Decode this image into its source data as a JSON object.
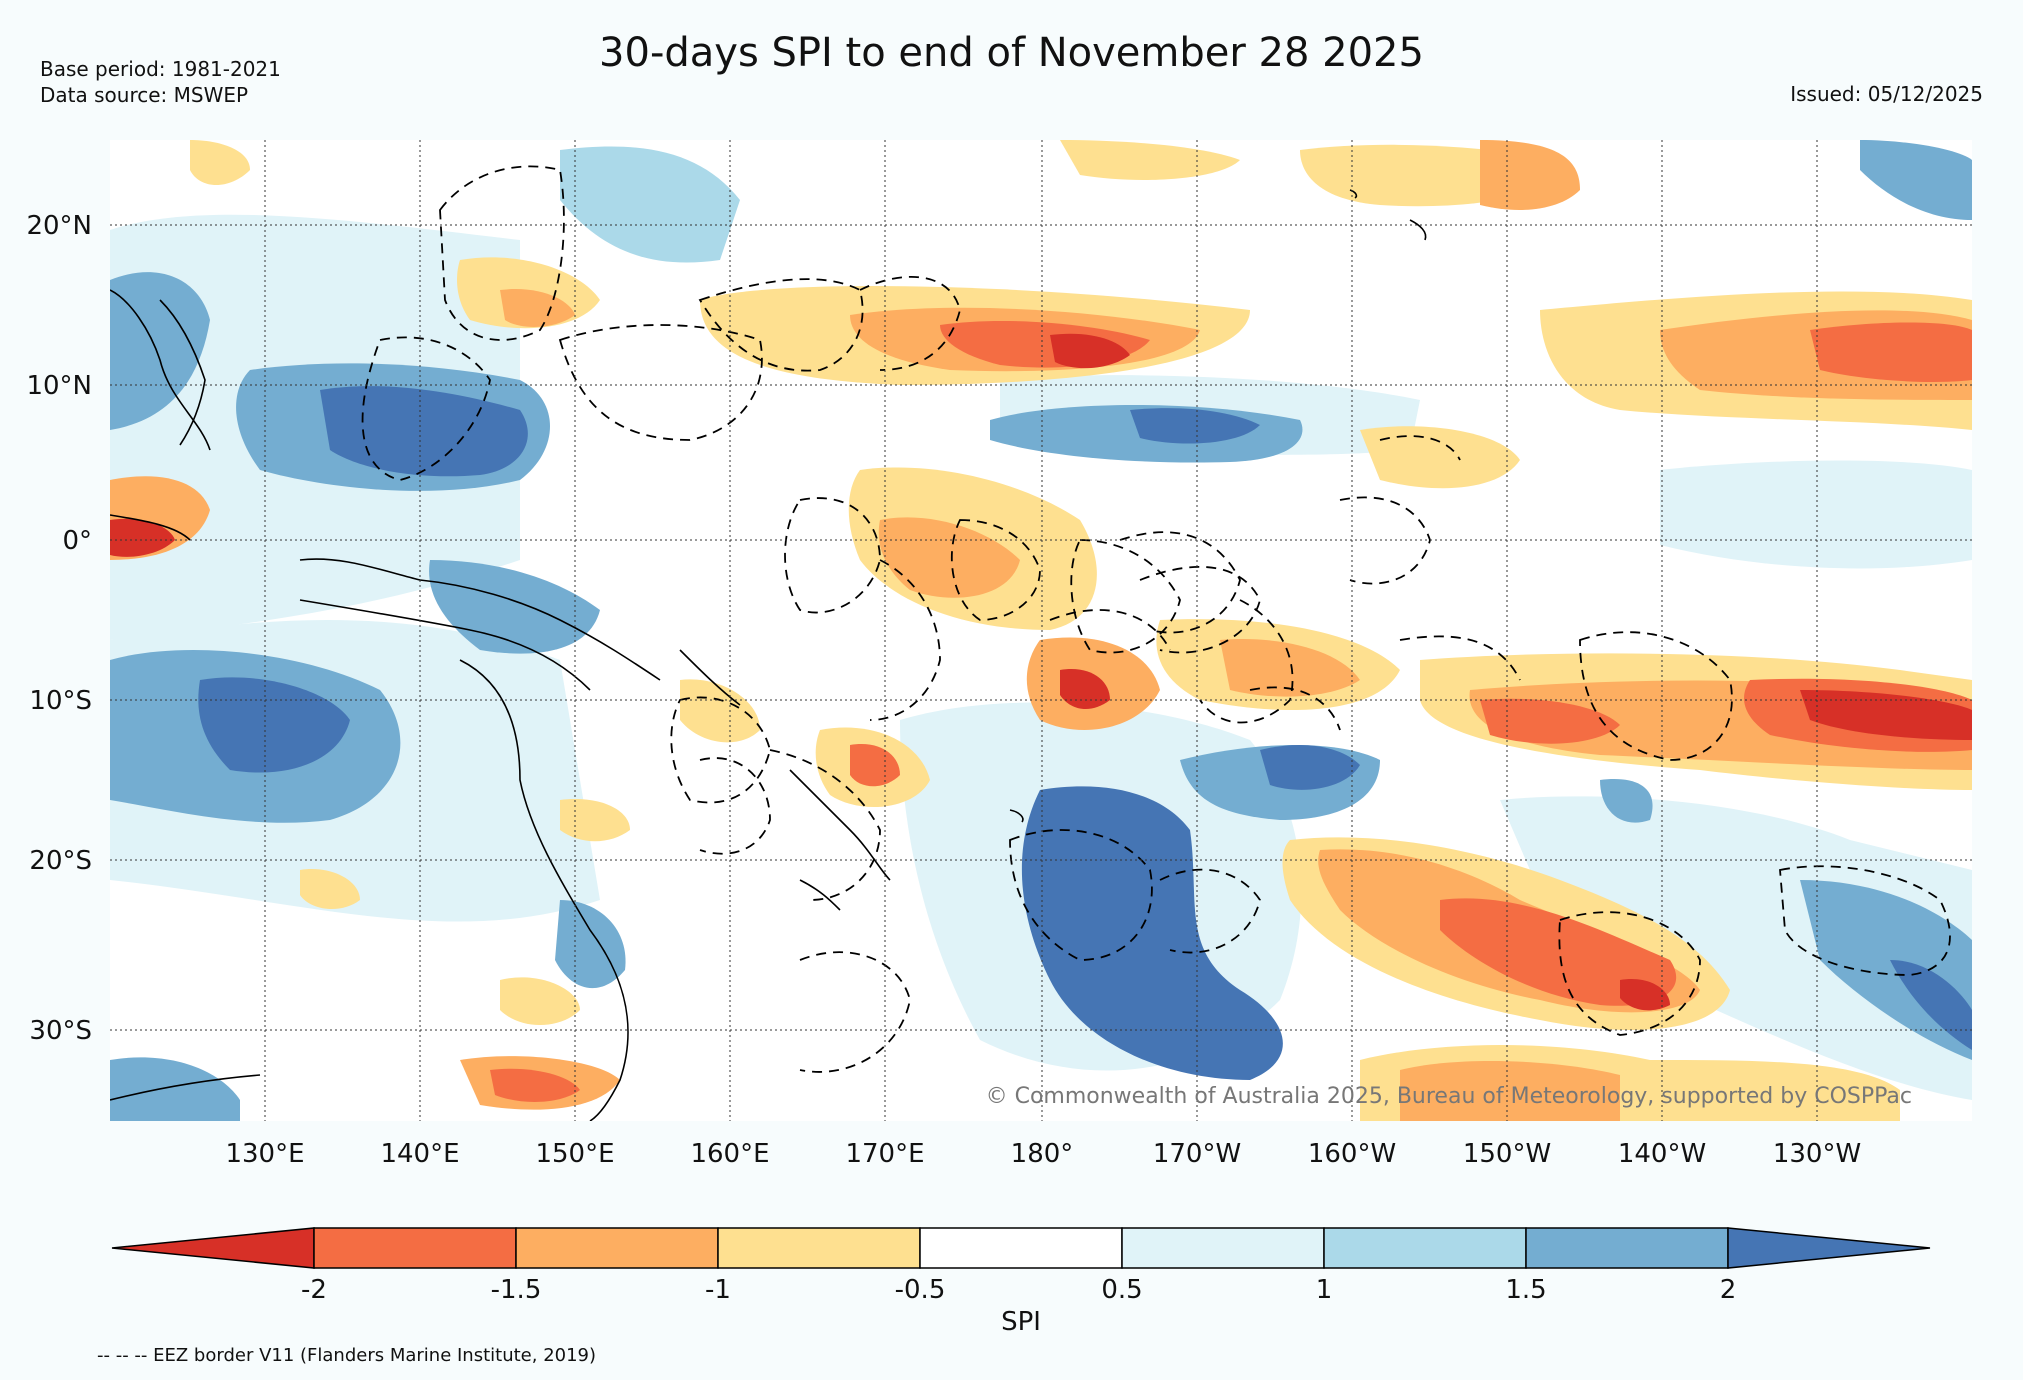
{
  "header": {
    "title": "30-days SPI to end of November 28 2025",
    "base_period": "Base period: 1981-2021",
    "data_source": "Data source: MSWEP",
    "issued": "Issued: 05/12/2025"
  },
  "map": {
    "lat_labels": [
      "20°N",
      "10°N",
      "0°",
      "10°S",
      "20°S",
      "30°S"
    ],
    "lon_labels": [
      "130°E",
      "140°E",
      "150°E",
      "160°E",
      "170°E",
      "180°",
      "170°W",
      "160°W",
      "150°W",
      "140°W",
      "130°W"
    ],
    "copyright": "© Commonwealth of Australia 2025, Bureau of Meteorology, supported by COSPPac"
  },
  "colorbar": {
    "title": "SPI",
    "ticks": [
      "-2",
      "-1.5",
      "-1",
      "-0.5",
      "0.5",
      "1",
      "1.5",
      "2"
    ],
    "colors": [
      "#d73027",
      "#f46d43",
      "#fdae61",
      "#fee090",
      "#ffffff",
      "#e0f3f8",
      "#abd9e9",
      "#74add1",
      "#4575b4"
    ]
  },
  "footer": {
    "eez_note": "-- -- -- EEZ border V11 (Flanders Marine Institute, 2019)"
  }
}
